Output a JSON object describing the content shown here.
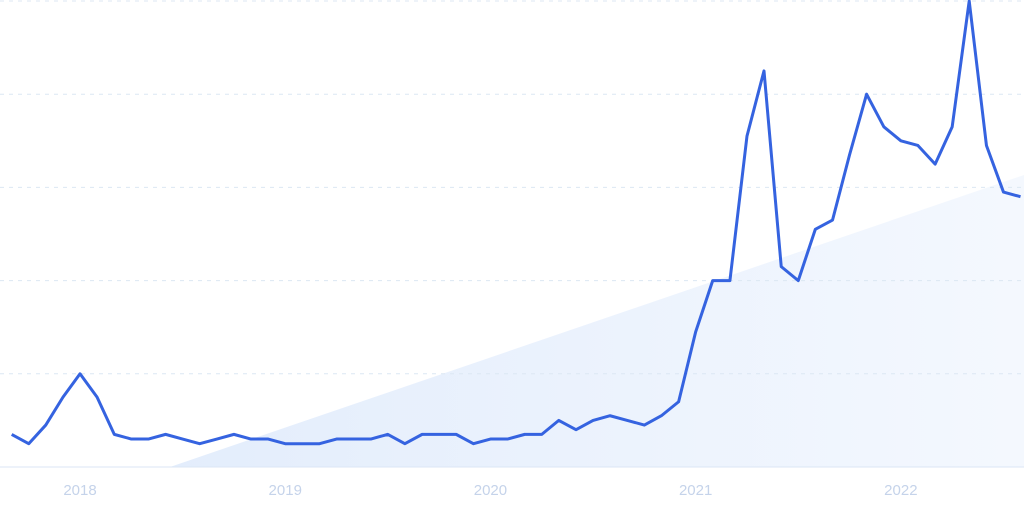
{
  "chart_data": {
    "type": "line",
    "x": [
      2017.667,
      2017.75,
      2017.833,
      2017.917,
      2018,
      2018.083,
      2018.167,
      2018.25,
      2018.333,
      2018.417,
      2018.5,
      2018.583,
      2018.667,
      2018.75,
      2018.833,
      2018.917,
      2019,
      2019.083,
      2019.167,
      2019.25,
      2019.333,
      2019.417,
      2019.5,
      2019.583,
      2019.667,
      2019.75,
      2019.833,
      2019.917,
      2020,
      2020.083,
      2020.167,
      2020.25,
      2020.333,
      2020.417,
      2020.5,
      2020.583,
      2020.667,
      2020.75,
      2020.833,
      2020.917,
      2021,
      2021.083,
      2021.167,
      2021.25,
      2021.333,
      2021.417,
      2021.5,
      2021.583,
      2021.667,
      2021.75,
      2021.833,
      2021.917,
      2022,
      2022.083,
      2022.167,
      2022.25,
      2022.333,
      2022.417,
      2022.5,
      2022.583
    ],
    "values": [
      7,
      5,
      9,
      15,
      20,
      15,
      7,
      6,
      6,
      7,
      6,
      5,
      6,
      7,
      6,
      6,
      5,
      5,
      5,
      6,
      6,
      6,
      7,
      5,
      7,
      7,
      7,
      5,
      6,
      6,
      7,
      7,
      10,
      8,
      10,
      11,
      10,
      9,
      11,
      14,
      29,
      40,
      40,
      71,
      85,
      43,
      40,
      51,
      53,
      67,
      80,
      73,
      70,
      69,
      65,
      73,
      100,
      69,
      59,
      58
    ],
    "color": "#3563e0",
    "xlim": [
      2017.61,
      2022.6
    ],
    "xticks": [
      2018,
      2019,
      2020,
      2021,
      2022
    ],
    "ylim": [
      0,
      100
    ],
    "yticks": [
      0,
      20,
      40,
      60,
      80,
      100
    ],
    "grid": true
  }
}
